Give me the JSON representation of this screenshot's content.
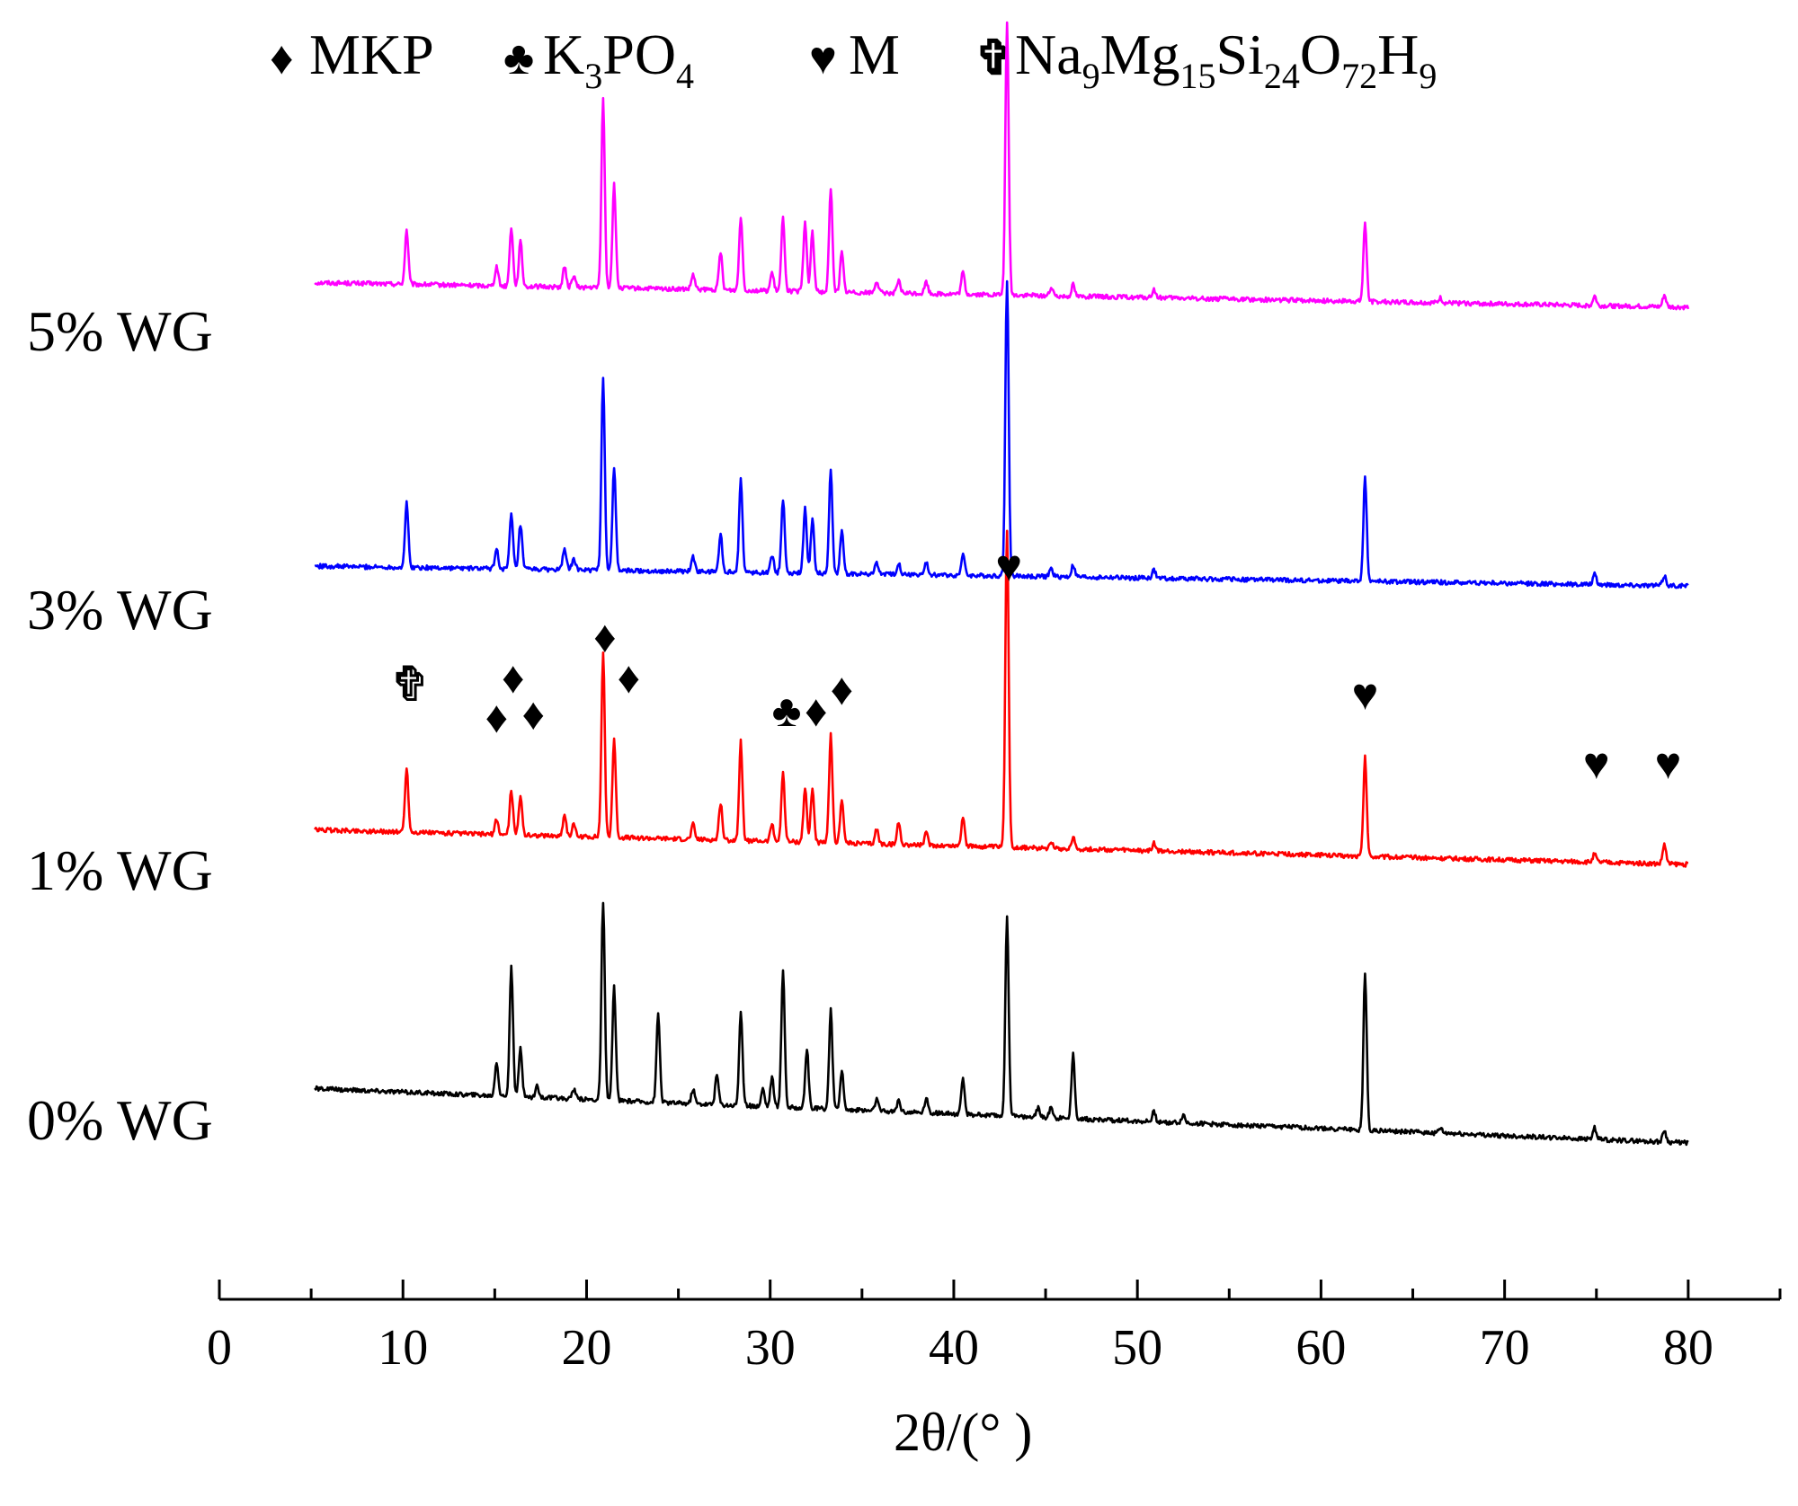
{
  "chart_data": {
    "type": "line",
    "xlabel": "2θ/(° )",
    "ylabel": "",
    "xlim": [
      0,
      85
    ],
    "xticks": [
      0,
      10,
      20,
      30,
      40,
      50,
      60,
      70,
      80
    ],
    "grid": false,
    "legend": {
      "placement": "top",
      "entries": [
        {
          "id": "mkp",
          "symbol": "♦",
          "symbol_name": "diamond-icon",
          "parts": [
            {
              "t": "MKP",
              "sub": false
            }
          ]
        },
        {
          "id": "k3po4",
          "symbol": "♣",
          "symbol_name": "club-icon",
          "parts": [
            {
              "t": "K",
              "sub": false
            },
            {
              "t": "3",
              "sub": true
            },
            {
              "t": "PO",
              "sub": false
            },
            {
              "t": "4",
              "sub": true
            }
          ]
        },
        {
          "id": "m",
          "symbol": "♥",
          "symbol_name": "heart-icon",
          "parts": [
            {
              "t": "M",
              "sub": false
            }
          ]
        },
        {
          "id": "nams",
          "symbol": "✞",
          "symbol_name": "cross-icon",
          "parts": [
            {
              "t": "Na",
              "sub": false
            },
            {
              "t": "9",
              "sub": true
            },
            {
              "t": "Mg",
              "sub": false
            },
            {
              "t": "15",
              "sub": true
            },
            {
              "t": "Si",
              "sub": false
            },
            {
              "t": "24",
              "sub": true
            },
            {
              "t": "O",
              "sub": false
            },
            {
              "t": "72",
              "sub": true
            },
            {
              "t": "H",
              "sub": false
            },
            {
              "t": "9",
              "sub": true
            }
          ]
        }
      ]
    },
    "series": [
      {
        "name": "5% WG",
        "color": "#ff00ff",
        "offset": 3,
        "baseline_start": 0.25,
        "baseline_end": 0.0,
        "peaks": [
          [
            10.2,
            0.55
          ],
          [
            15.1,
            0.2
          ],
          [
            15.9,
            0.6
          ],
          [
            16.4,
            0.45
          ],
          [
            18.8,
            0.2
          ],
          [
            19.3,
            0.12
          ],
          [
            20.9,
            1.9
          ],
          [
            21.5,
            1.05
          ],
          [
            25.8,
            0.15
          ],
          [
            27.3,
            0.38
          ],
          [
            28.4,
            0.75
          ],
          [
            30.1,
            0.18
          ],
          [
            30.7,
            0.75
          ],
          [
            31.9,
            0.7
          ],
          [
            32.3,
            0.6
          ],
          [
            33.3,
            1.05
          ],
          [
            33.9,
            0.4
          ],
          [
            35.8,
            0.12
          ],
          [
            37.0,
            0.12
          ],
          [
            38.5,
            0.12
          ],
          [
            40.5,
            0.22
          ],
          [
            42.9,
            2.75
          ],
          [
            45.3,
            0.08
          ],
          [
            46.5,
            0.12
          ],
          [
            50.9,
            0.08
          ],
          [
            62.4,
            0.8
          ],
          [
            66.5,
            0.05
          ],
          [
            74.9,
            0.1
          ],
          [
            78.7,
            0.12
          ]
        ]
      },
      {
        "name": "3% WG",
        "color": "#0000ff",
        "offset": 2,
        "baseline_start": 0.2,
        "baseline_end": 0.0,
        "peaks": [
          [
            10.2,
            0.65
          ],
          [
            15.1,
            0.2
          ],
          [
            15.9,
            0.55
          ],
          [
            16.4,
            0.45
          ],
          [
            18.8,
            0.22
          ],
          [
            19.3,
            0.12
          ],
          [
            20.9,
            1.95
          ],
          [
            21.5,
            1.05
          ],
          [
            25.8,
            0.15
          ],
          [
            27.3,
            0.38
          ],
          [
            28.4,
            0.95
          ],
          [
            30.1,
            0.18
          ],
          [
            30.7,
            0.75
          ],
          [
            31.9,
            0.65
          ],
          [
            32.3,
            0.55
          ],
          [
            33.3,
            1.05
          ],
          [
            33.9,
            0.42
          ],
          [
            35.8,
            0.12
          ],
          [
            37.0,
            0.12
          ],
          [
            38.5,
            0.12
          ],
          [
            40.5,
            0.22
          ],
          [
            42.9,
            3.0
          ],
          [
            45.3,
            0.08
          ],
          [
            46.5,
            0.12
          ],
          [
            50.9,
            0.08
          ],
          [
            62.4,
            1.05
          ],
          [
            74.9,
            0.1
          ],
          [
            78.7,
            0.1
          ]
        ]
      },
      {
        "name": "1% WG",
        "color": "#ff0000",
        "offset": 1,
        "baseline_start": 0.35,
        "baseline_end": 0.0,
        "peaks": [
          [
            10.2,
            0.65
          ],
          [
            15.1,
            0.15
          ],
          [
            15.9,
            0.45
          ],
          [
            16.4,
            0.4
          ],
          [
            18.8,
            0.22
          ],
          [
            19.3,
            0.12
          ],
          [
            20.9,
            1.85
          ],
          [
            21.5,
            1.0
          ],
          [
            25.8,
            0.15
          ],
          [
            27.3,
            0.38
          ],
          [
            28.4,
            1.0
          ],
          [
            30.1,
            0.18
          ],
          [
            30.7,
            0.7
          ],
          [
            31.9,
            0.55
          ],
          [
            32.3,
            0.55
          ],
          [
            33.3,
            1.1
          ],
          [
            33.9,
            0.45
          ],
          [
            35.8,
            0.15
          ],
          [
            37.0,
            0.22
          ],
          [
            38.5,
            0.12
          ],
          [
            40.5,
            0.3
          ],
          [
            42.9,
            3.2
          ],
          [
            45.3,
            0.08
          ],
          [
            46.5,
            0.12
          ],
          [
            50.9,
            0.08
          ],
          [
            62.4,
            1.0
          ],
          [
            74.9,
            0.08
          ],
          [
            78.7,
            0.2
          ]
        ]
      },
      {
        "name": "0% WG",
        "color": "#000000",
        "offset": 0,
        "baseline_start": 0.55,
        "baseline_end": 0.0,
        "peaks": [
          [
            15.1,
            0.35
          ],
          [
            15.9,
            1.3
          ],
          [
            16.4,
            0.5
          ],
          [
            17.3,
            0.12
          ],
          [
            19.3,
            0.1
          ],
          [
            20.9,
            2.0
          ],
          [
            21.5,
            1.15
          ],
          [
            23.9,
            0.9
          ],
          [
            25.8,
            0.15
          ],
          [
            27.1,
            0.3
          ],
          [
            28.4,
            0.95
          ],
          [
            29.6,
            0.18
          ],
          [
            30.1,
            0.3
          ],
          [
            30.7,
            1.4
          ],
          [
            32.0,
            0.6
          ],
          [
            33.3,
            1.0
          ],
          [
            33.9,
            0.4
          ],
          [
            35.8,
            0.12
          ],
          [
            37.0,
            0.12
          ],
          [
            38.5,
            0.15
          ],
          [
            40.5,
            0.35
          ],
          [
            42.9,
            2.0
          ],
          [
            44.6,
            0.1
          ],
          [
            45.3,
            0.12
          ],
          [
            46.5,
            0.65
          ],
          [
            50.9,
            0.1
          ],
          [
            52.5,
            0.08
          ],
          [
            62.4,
            1.6
          ],
          [
            66.5,
            0.05
          ],
          [
            74.9,
            0.12
          ],
          [
            78.7,
            0.12
          ]
        ]
      }
    ],
    "annotations": [
      {
        "symbol": "♥",
        "x": 43.0,
        "y": 5.85,
        "hollow": false
      },
      {
        "symbol": "♦",
        "x": 21.0,
        "y": 5.13,
        "hollow": false
      },
      {
        "symbol": "♦",
        "x": 22.3,
        "y": 4.72,
        "hollow": false
      },
      {
        "symbol": "♦",
        "x": 16.0,
        "y": 4.72,
        "hollow": false
      },
      {
        "symbol": "♦",
        "x": 15.1,
        "y": 4.32,
        "hollow": false
      },
      {
        "symbol": "♦",
        "x": 17.1,
        "y": 4.35,
        "hollow": false
      },
      {
        "symbol": "✞",
        "x": 10.4,
        "y": 4.65,
        "hollow": true
      },
      {
        "symbol": "♣",
        "x": 30.9,
        "y": 4.38,
        "hollow": false
      },
      {
        "symbol": "♦",
        "x": 32.5,
        "y": 4.38,
        "hollow": false
      },
      {
        "symbol": "♦",
        "x": 33.9,
        "y": 4.6,
        "hollow": false
      },
      {
        "symbol": "♥",
        "x": 62.4,
        "y": 4.55,
        "hollow": false
      },
      {
        "symbol": "♥",
        "x": 75.0,
        "y": 3.85,
        "hollow": false
      },
      {
        "symbol": "♥",
        "x": 78.9,
        "y": 3.85,
        "hollow": false
      }
    ]
  }
}
